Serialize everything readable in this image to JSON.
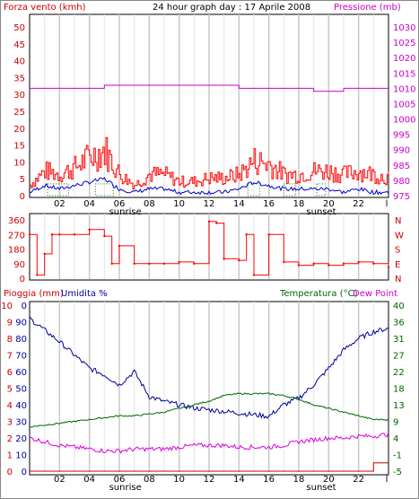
{
  "title": "24 hour graph day : 17 Aprile 2008",
  "colors": {
    "wind": "#ff0000",
    "gust": "#ff0000",
    "wind_avg": "#0000cc",
    "wind_green": "#008000",
    "pressure": "#cc00cc",
    "direction": "#ff0000",
    "rain": "#cc0000",
    "humidity": "#000099",
    "temperature": "#006600",
    "dewpoint": "#dd00dd",
    "grid": "#bbbbbb",
    "axis_red": "#cc0000",
    "axis_magenta": "#cc00cc",
    "axis_green": "#006600",
    "axis_blue": "#000099"
  },
  "x_ticks": [
    "02",
    "04",
    "06",
    "08",
    "10",
    "12",
    "14",
    "16",
    "18",
    "20",
    "22",
    "l"
  ],
  "sunrise_label": "sunrise",
  "sunset_label": "sunset",
  "chart_data": [
    {
      "type": "line",
      "title": "24 hour graph day : 17 Aprile 2008",
      "left_axis_label": "Forza vento (kmh)",
      "right_axis_label": "Pressione (mb)",
      "left_ylim": [
        0,
        50
      ],
      "left_ticks": [
        "50",
        "45",
        "40",
        "35",
        "30",
        "25",
        "20",
        "15",
        "10",
        "5",
        "0"
      ],
      "right_ylim": [
        975,
        1030
      ],
      "right_ticks": [
        "1030",
        "1025",
        "1020",
        "1015",
        "1010",
        "1005",
        "1000",
        "995",
        "990",
        "985",
        "980",
        "975"
      ],
      "x": [
        0,
        1,
        2,
        3,
        4,
        5,
        6,
        7,
        8,
        9,
        10,
        11,
        12,
        13,
        14,
        15,
        16,
        17,
        18,
        19,
        20,
        21,
        22,
        23,
        24
      ],
      "series": [
        {
          "values": [
            3,
            7,
            6,
            8,
            11,
            13,
            6,
            3,
            6,
            6,
            4,
            4,
            5,
            5,
            6,
            10,
            9,
            6,
            6,
            7,
            7,
            6,
            7,
            6,
            5
          ],
          "axis": "left"
        },
        {
          "values": [
            1,
            3,
            2,
            3,
            4,
            5,
            2,
            1,
            2,
            2,
            1,
            1,
            1,
            1,
            2,
            4,
            3,
            2,
            2,
            2,
            2,
            1,
            2,
            1,
            1
          ],
          "axis": "left"
        },
        {
          "values": [
            1010,
            1010,
            1010,
            1010,
            1010,
            1011,
            1011,
            1011,
            1011,
            1011,
            1011,
            1011,
            1011,
            1011,
            1010,
            1010,
            1010,
            1010,
            1010,
            1009,
            1009,
            1010,
            1010,
            1010,
            1010
          ],
          "axis": "right"
        }
      ]
    },
    {
      "type": "scatter",
      "left_ticks": [
        "360",
        "270",
        "180",
        "90",
        "0"
      ],
      "left_ylim": [
        0,
        360
      ],
      "right_ticks": [
        "N",
        "W",
        "S",
        "E",
        "N"
      ],
      "x": [
        0,
        0.5,
        1,
        1.5,
        2,
        3,
        4,
        5,
        5.5,
        6,
        7,
        8,
        9,
        10,
        11,
        12,
        12.5,
        13,
        14,
        14.5,
        15,
        16,
        17,
        18,
        19,
        20,
        21,
        22,
        23,
        24
      ],
      "values": [
        270,
        20,
        150,
        270,
        270,
        270,
        300,
        260,
        90,
        200,
        90,
        90,
        90,
        100,
        90,
        350,
        340,
        120,
        110,
        270,
        20,
        270,
        100,
        80,
        90,
        80,
        90,
        100,
        90,
        70
      ]
    },
    {
      "type": "line",
      "left_axis_label": "Pioggia (mm)",
      "left_axis_label2": "Umidita %",
      "right_axis_label": "Temperatura (°C)",
      "right_axis_label2": "Dew Point",
      "rain_ticks": [
        "10",
        "9",
        "8",
        "7",
        "6",
        "5",
        "4",
        "3",
        "2",
        "1",
        "0"
      ],
      "rain_ylim": [
        0,
        10
      ],
      "humidity_ticks": [
        "0",
        "90",
        "80",
        "70",
        "60",
        "50",
        "40",
        "30",
        "20",
        "10",
        "0"
      ],
      "humidity_ylim": [
        0,
        100
      ],
      "right_ticks": [
        "40",
        "36",
        "31",
        "27",
        "22",
        "18",
        "13",
        "9",
        "4",
        "-1",
        "-5"
      ],
      "right_ylim": [
        -5,
        40
      ],
      "x": [
        0,
        1,
        2,
        3,
        4,
        5,
        6,
        7,
        8,
        9,
        10,
        11,
        12,
        13,
        14,
        15,
        16,
        17,
        18,
        19,
        20,
        21,
        22,
        23,
        24
      ],
      "series": [
        {
          "values": [
            0,
            0,
            0,
            0,
            0,
            0,
            0,
            0,
            0,
            0,
            0,
            0,
            0,
            0,
            0,
            0,
            0,
            0,
            0,
            0,
            0,
            0,
            0,
            0.5,
            0.5
          ],
          "axis": "rain"
        },
        {
          "values": [
            92,
            85,
            78,
            70,
            62,
            58,
            52,
            60,
            45,
            42,
            40,
            38,
            37,
            36,
            35,
            34,
            33,
            40,
            44,
            52,
            62,
            73,
            80,
            84,
            86
          ],
          "axis": "humidity"
        },
        {
          "values": [
            7,
            7.5,
            8,
            8.5,
            9,
            9.5,
            10,
            10,
            10.5,
            11,
            12,
            13,
            14,
            15.5,
            16,
            16,
            16,
            15.5,
            14.5,
            13,
            12,
            11,
            10,
            9,
            9
          ],
          "axis": "right"
        },
        {
          "values": [
            4,
            3,
            2,
            1.5,
            1,
            0.5,
            0.5,
            1,
            1,
            1,
            1.5,
            2,
            2,
            2,
            1.5,
            1.5,
            1.5,
            2,
            3,
            3.5,
            4,
            4,
            4.5,
            4.5,
            5
          ],
          "axis": "right"
        }
      ]
    }
  ]
}
